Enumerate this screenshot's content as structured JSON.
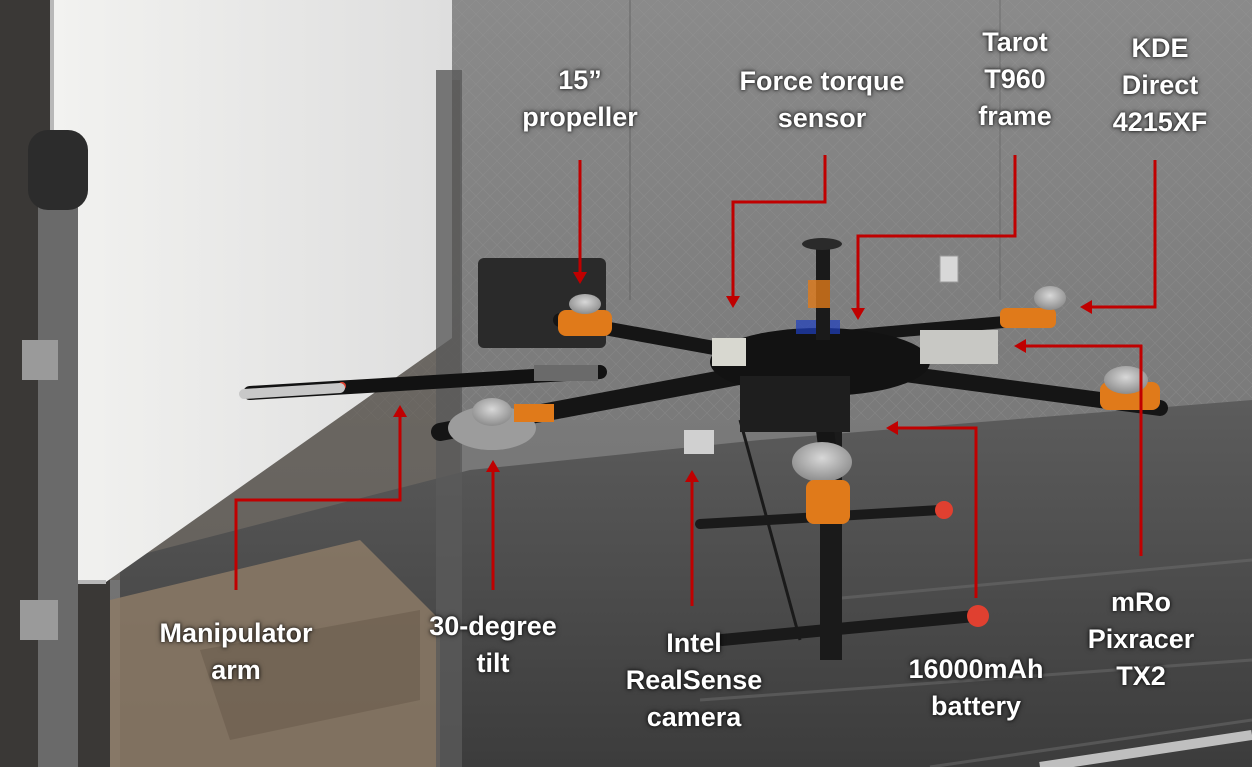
{
  "colors": {
    "annotation_arrow": "#c00000",
    "label_text": "#ffffff",
    "floor_gray": "#5a5a5a",
    "whiteboard": "#ececea",
    "drone_black": "#141414",
    "motor_orange": "#e07a1a"
  },
  "annotations": [
    {
      "id": "propeller",
      "lines": [
        "15”",
        "propeller"
      ]
    },
    {
      "id": "force-torque-sensor",
      "lines": [
        "Force torque",
        "sensor"
      ]
    },
    {
      "id": "frame",
      "lines": [
        "Tarot",
        "T960",
        "frame"
      ]
    },
    {
      "id": "motor",
      "lines": [
        "KDE",
        "Direct",
        "4215XF"
      ]
    },
    {
      "id": "manipulator-arm",
      "lines": [
        "Manipulator",
        "arm"
      ]
    },
    {
      "id": "tilt",
      "lines": [
        "30-degree",
        "tilt"
      ]
    },
    {
      "id": "camera",
      "lines": [
        "Intel",
        "RealSense",
        "camera"
      ]
    },
    {
      "id": "battery",
      "lines": [
        "16000mAh",
        "battery"
      ]
    },
    {
      "id": "flight-controller",
      "lines": [
        "mRo",
        "Pixracer",
        "TX2"
      ]
    }
  ]
}
